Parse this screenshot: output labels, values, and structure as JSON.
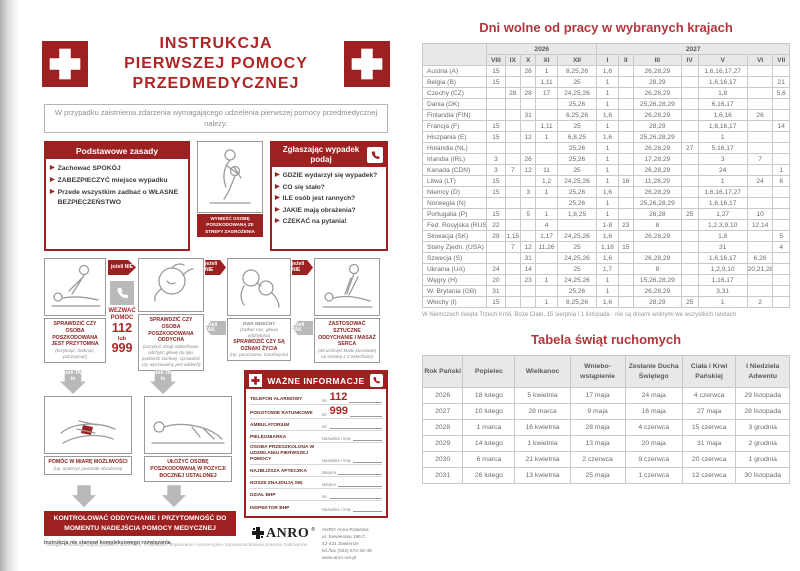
{
  "colors": {
    "poster_red": "#9e2121",
    "title_red": "#b4363c",
    "table_border": "#c9c9c9",
    "header_bg": "#e8e8e8"
  },
  "poster": {
    "title_lines": [
      "INSTRUKCJA",
      "PIERWSZEJ POMOCY",
      "PRZEDMEDYCZNEJ"
    ],
    "intro": "W przypadku zaistnienia zdarzenia wymagającego udzielenia pierwszej pomocy przedmedycznej należy:",
    "basic_rules": {
      "title": "Podstawowe zasady",
      "items": [
        "Zachować SPOKÓJ",
        "ZABEZPIECZYĆ miejsce wypadku",
        "Przede wszystkim zadbać o WŁASNE BEZPIECZEŃSTWO"
      ]
    },
    "evacuate_caption": "WYNIEŚĆ OSOBĘ POSZKODOWANĄ ZE STREFY ZAGROŻENIA",
    "report": {
      "title": "Zgłaszając wypadek podaj",
      "items": [
        "GDZIE wydarzył się wypadek?",
        "CO się stało?",
        "ILE osób jest rannych?",
        "JAKIE mają obrażenia?",
        "CZEKAĆ na pytania!"
      ]
    },
    "flow": {
      "if_no": "jeżeli NIE",
      "if_yes": "jeżeli TAK",
      "if_yes_to": "jeżeli TAK to",
      "call_label": "WEZWAĆ POMOC",
      "call_num1": "112",
      "call_lub": "lub",
      "call_num2": "999",
      "step1_title": "SPRAWDZIĆ CZY OSOBA POSZKODOWANA JEST PRZYTOMNA",
      "step1_note": "(krzyknąć, dotknąć, potrząsnąć)",
      "step2_title": "SPRAWDZIĆ CZY OSOBA POSZKODOWANA ODDYCHA",
      "step2_note": "(oczyścić drogi oddechowe, odchylić głowę do tyłu, podnieść żuchwę, sprawdzić czy wyczuwalny jest oddech)",
      "step3_title": "DWA WDECHY",
      "step3_note": "(zatkać nos, głowa odchylona)",
      "step3_title2": "SPRAWDZIĆ CZY SĄ OZNAKI ŻYCIA",
      "step3_note2": "(np. poruszanie, kaszlnięcie)",
      "step4_title": "ZASTOSOWAĆ SZTUCZNE ODDYCHANIE I MASAŻ SERCA",
      "step4_note": "(30 uciśnięć klatki piersiowej na zmianę z 2 wdechami)",
      "help_title": "POMÓC W MIARĘ MOŻLIWOŚCI",
      "help_note": "(np. opatrzyć powstałe obrażenia)",
      "position_title": "UŁOŻYĆ OSOBĘ POSZKODOWANĄ W POZYCJI BOCZNEJ USTALONEJ"
    },
    "final_banner": "KONTROLOWAĆ ODDYCHANIE I PRZYTOMNOŚĆ DO MOMENTU NADEJŚCIA POMOCY MEDYCZNEJ",
    "disclaimer": "Instrukcja nie stanowi kompleksowego rozwiązania.",
    "copyright": "Uwaga! Instrukcja objęta prawami autorskimi. Powielanie, kopiowanie i komercyjne rozpowszechnianie prawnie zabronione.",
    "important_info": {
      "title": "WAŻNE INFORMACJE",
      "rows": [
        {
          "label": "TELEFON ALARMOWY",
          "prefix": "tel.",
          "value": "112"
        },
        {
          "label": "POGOTOWIE RATUNKOWE",
          "prefix": "tel.",
          "value": "999"
        },
        {
          "label": "AMBULATORIUM",
          "prefix": "tel.",
          "value": ""
        },
        {
          "label": "PIELĘGNIARKA",
          "prefix": "Nazwisko i imię",
          "value": ""
        },
        {
          "label": "OSOBA PRZESZKOLONA W UDZIELANIU PIERWSZEJ POMOCY",
          "prefix": "Nazwisko i imię",
          "value": ""
        },
        {
          "label": "NAJBLIŻSZA APTECZKA",
          "prefix": "Miejsce",
          "value": ""
        },
        {
          "label": "NOSZE ZNAJDUJĄ SIĘ",
          "prefix": "Miejsce",
          "value": ""
        },
        {
          "label": "DZIAŁ BHP",
          "prefix": "tel.",
          "value": ""
        },
        {
          "label": "INSPEKTOR BHP",
          "prefix": "Nazwisko i imię",
          "value": ""
        }
      ]
    },
    "brand": {
      "logo": "ANRO",
      "reg": "®",
      "address_lines": [
        "ANRO Anna Rotarska",
        "ul. Siewierska 196 C",
        "42-431 Zawiercie",
        "tel./fax (032) 672-42-48",
        "www.anro.net.pl"
      ]
    }
  },
  "holidays_table": {
    "title": "Dni wolne od pracy w wybranych krajach",
    "year_groups": [
      {
        "year": "2026",
        "span": 5
      },
      {
        "year": "2027",
        "span": 7
      }
    ],
    "months": [
      "VIII",
      "IX",
      "X",
      "XI",
      "XII",
      "I",
      "II",
      "III",
      "IV",
      "V",
      "VI",
      "VII"
    ],
    "rows": [
      {
        "country": "Austria (A)",
        "cells": [
          "15",
          "",
          "26",
          "1",
          "8,25,26",
          "1,6",
          "",
          "26,28,29",
          "",
          "1,6,16,17,27",
          "",
          ""
        ]
      },
      {
        "country": "Belgia (B)",
        "cells": [
          "15",
          "",
          "",
          "1,11",
          "25",
          "1",
          "",
          "28,29",
          "",
          "1,6,16,17",
          "",
          "21"
        ]
      },
      {
        "country": "Czechy (CZ)",
        "cells": [
          "",
          "28",
          "28",
          "17",
          "24,25,26",
          "1",
          "",
          "26,28,29",
          "",
          "1,8",
          "",
          "5,6"
        ]
      },
      {
        "country": "Dania (DK)",
        "cells": [
          "",
          "",
          "",
          "",
          "25,26",
          "1",
          "",
          "25,26,28,29",
          "",
          "6,16,17",
          "",
          ""
        ]
      },
      {
        "country": "Finlandia (FIN)",
        "cells": [
          "",
          "",
          "31",
          "",
          "6,25,26",
          "1,6",
          "",
          "26,28,29",
          "",
          "1,6,16",
          "26",
          ""
        ]
      },
      {
        "country": "Francja (F)",
        "cells": [
          "15",
          "",
          "",
          "1,11",
          "25",
          "1",
          "",
          "28,29",
          "",
          "1,8,16,17",
          "",
          "14"
        ]
      },
      {
        "country": "Hiszpania (E)",
        "cells": [
          "15",
          "",
          "12",
          "1",
          "6,8,25",
          "1,6",
          "",
          "25,26,28,29",
          "",
          "1",
          "",
          ""
        ]
      },
      {
        "country": "Holandia (NL)",
        "cells": [
          "",
          "",
          "",
          "",
          "25,26",
          "1",
          "",
          "26,28,29",
          "27",
          "5,16,17",
          "",
          ""
        ]
      },
      {
        "country": "Irlandia (IRL)",
        "cells": [
          "3",
          "",
          "26",
          "",
          "25,26",
          "1",
          "",
          "17,28,29",
          "",
          "3",
          "7",
          ""
        ]
      },
      {
        "country": "Kanada (CDN)",
        "cells": [
          "3",
          "7",
          "12",
          "11",
          "25",
          "1",
          "",
          "26,28,29",
          "",
          "24",
          "",
          "1"
        ]
      },
      {
        "country": "Litwa (LT)",
        "cells": [
          "15",
          "",
          "",
          "1,2",
          "24,25,26",
          "1",
          "16",
          "11,28,29",
          "",
          "1",
          "24",
          "6"
        ]
      },
      {
        "country": "Niemcy (D)",
        "cells": [
          "15",
          "",
          "3",
          "1",
          "25,26",
          "1,6",
          "",
          "26,28,29",
          "",
          "1,6,16,17,27",
          "",
          ""
        ]
      },
      {
        "country": "Norwegia (N)",
        "cells": [
          "",
          "",
          "",
          "",
          "25,26",
          "1",
          "",
          "25,26,28,29",
          "",
          "1,6,16,17",
          "",
          ""
        ]
      },
      {
        "country": "Portugalia (P)",
        "cells": [
          "15",
          "",
          "5",
          "1",
          "1,8,25",
          "1",
          "",
          "26,28",
          "25",
          "1,27",
          "10",
          ""
        ]
      },
      {
        "country": "Fed. Rosyjska (RUS)",
        "cells": [
          "22",
          "",
          "",
          "4",
          "",
          "1-8",
          "23",
          "8",
          "",
          "1,2,3,9,10",
          "12,14",
          ""
        ]
      },
      {
        "country": "Słowacja (SK)",
        "cells": [
          "29",
          "1,15",
          "",
          "1,17",
          "24,25,26",
          "1,6",
          "",
          "26,28,29",
          "",
          "1,8",
          "",
          "5"
        ]
      },
      {
        "country": "Stany Zjedn. (USA)",
        "cells": [
          "",
          "7",
          "12",
          "11,26",
          "25",
          "1,18",
          "15",
          "",
          "",
          "31",
          "",
          "4"
        ]
      },
      {
        "country": "Szwecja (S)",
        "cells": [
          "",
          "",
          "31",
          "",
          "24,25,26",
          "1,6",
          "",
          "26,28,29",
          "",
          "1,6,16,17",
          "6,26",
          ""
        ]
      },
      {
        "country": "Ukraina (UA)",
        "cells": [
          "24",
          "",
          "14",
          "",
          "25",
          "1,7",
          "",
          "8",
          "",
          "1,2,9,10",
          "20,21,28",
          ""
        ]
      },
      {
        "country": "Węgry (H)",
        "cells": [
          "20",
          "",
          "23",
          "1",
          "24,25,26",
          "1",
          "",
          "15,26,28,29",
          "",
          "1,16,17",
          "",
          ""
        ]
      },
      {
        "country": "W. Brytania (GB)",
        "cells": [
          "31",
          "",
          "",
          "",
          "25,26",
          "1",
          "",
          "26,28,29",
          "",
          "3,31",
          "",
          ""
        ]
      },
      {
        "country": "Włochy (I)",
        "cells": [
          "15",
          "",
          "",
          "1",
          "8,25,26",
          "1,6",
          "",
          "28,29",
          "25",
          "1",
          "2",
          ""
        ]
      }
    ],
    "footnote": "W Niemczech święta Trzech Króli, Boże Ciało, 15 sierpnia i 1 listopada - nie są dniami wolnymi we wszystkich landach"
  },
  "movable_feasts": {
    "title": "Tabela świąt ruchomych",
    "headers": [
      "Rok Pański",
      "Popielec",
      "Wielkanoc",
      "Wniebo-wstąpienie",
      "Zesłanie Ducha Świętego",
      "Ciała i Krwi Pańskiej",
      "I Niedziela Adwentu"
    ],
    "rows": [
      [
        "2026",
        "18 lutego",
        "5 kwietnia",
        "17 maja",
        "24 maja",
        "4 czerwca",
        "29 listopada"
      ],
      [
        "2027",
        "10 lutego",
        "28 marca",
        "9 maja",
        "16 maja",
        "27 maja",
        "28 listopada"
      ],
      [
        "2028",
        "1 marca",
        "16 kwietnia",
        "28 maja",
        "4 czerwca",
        "15 czerwca",
        "3 grudnia"
      ],
      [
        "2029",
        "14 lutego",
        "1 kwietnia",
        "13 maja",
        "20 maja",
        "31 maja",
        "2 grudnia"
      ],
      [
        "2030",
        "6 marca",
        "21 kwietnia",
        "2 czerwca",
        "9 czerwca",
        "20 czerwca",
        "1 grudnia"
      ],
      [
        "2031",
        "26 lutego",
        "13 kwietnia",
        "25 maja",
        "1 czerwca",
        "12 czerwca",
        "30 listopada"
      ]
    ]
  }
}
